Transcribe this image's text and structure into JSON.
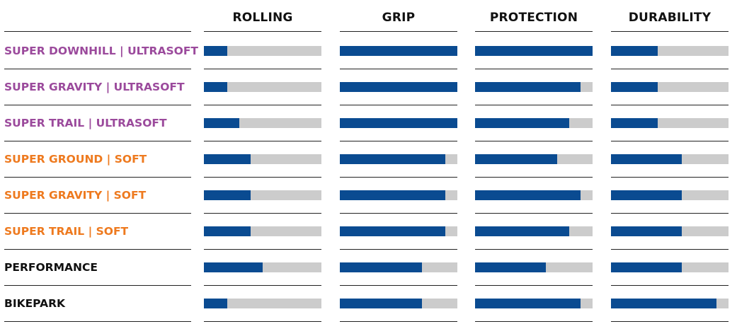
{
  "chart_data": {
    "type": "bar",
    "orientation": "horizontal",
    "scale_max": 10,
    "columns": [
      "ROLLING",
      "GRIP",
      "PROTECTION",
      "DURABILITY"
    ],
    "rows": [
      {
        "label": "SUPER DOWNHILL | ULTRASOFT",
        "color": "#9b4a9c",
        "values": [
          2,
          10,
          10,
          4
        ]
      },
      {
        "label": "SUPER GRAVITY | ULTRASOFT",
        "color": "#9b4a9c",
        "values": [
          2,
          10,
          9,
          4
        ]
      },
      {
        "label": "SUPER TRAIL | ULTRASOFT",
        "color": "#9b4a9c",
        "values": [
          3,
          10,
          8,
          4
        ]
      },
      {
        "label": "SUPER GROUND | SOFT",
        "color": "#ee7a1f",
        "values": [
          4,
          9,
          7,
          6
        ]
      },
      {
        "label": "SUPER GRAVITY | SOFT",
        "color": "#ee7a1f",
        "values": [
          4,
          9,
          9,
          6
        ]
      },
      {
        "label": "SUPER TRAIL | SOFT",
        "color": "#ee7a1f",
        "values": [
          4,
          9,
          8,
          6
        ]
      },
      {
        "label": "PERFORMANCE",
        "color": "#111111",
        "values": [
          5,
          7,
          6,
          6
        ]
      },
      {
        "label": "BIKEPARK",
        "color": "#111111",
        "values": [
          2,
          7,
          9,
          9
        ]
      }
    ],
    "bar_color": "#0a4b91",
    "track_color": "#cccccc"
  }
}
